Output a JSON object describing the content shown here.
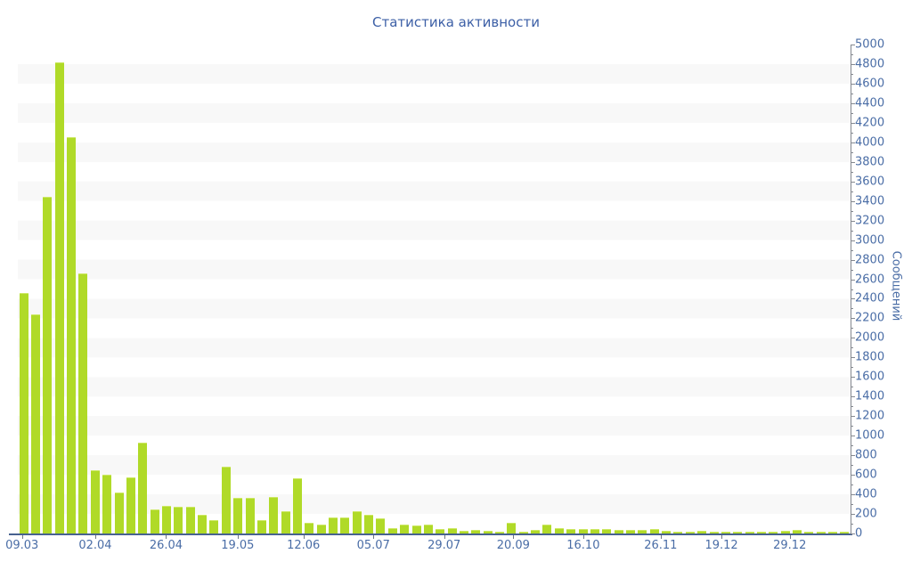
{
  "chart": {
    "title": "Статистика активности",
    "y_axis_title": "Сообщений"
  },
  "chart_data": {
    "type": "bar",
    "title": "Статистика активности",
    "xlabel": "",
    "ylabel": "Сообщений",
    "ylim": [
      0,
      5000
    ],
    "y_ticks": [
      0,
      200,
      400,
      600,
      800,
      1000,
      1200,
      1400,
      1600,
      1800,
      2000,
      2200,
      2400,
      2600,
      2800,
      3000,
      3200,
      3400,
      3600,
      3800,
      4000,
      4200,
      4400,
      4600,
      4800,
      5000
    ],
    "y_minor_tick_step": 100,
    "grid": "alternating-horizontal-stripes-every-200",
    "legend": "none",
    "bar_color": "#b0da28",
    "stripe_color": "#f8f8f8",
    "axis_line_color": "#47628f",
    "tick_label_color": "#4a6da6",
    "title_color": "#3c5fa6",
    "values": [
      2455,
      2240,
      3445,
      4820,
      4050,
      2655,
      650,
      600,
      420,
      575,
      925,
      250,
      280,
      270,
      275,
      190,
      140,
      680,
      360,
      360,
      140,
      375,
      230,
      565,
      110,
      90,
      160,
      160,
      230,
      195,
      155,
      55,
      95,
      85,
      95,
      50,
      55,
      25,
      35,
      27,
      18,
      105,
      22,
      40,
      88,
      58,
      49,
      43,
      49,
      43,
      40,
      40,
      34,
      49,
      27,
      22,
      20,
      25,
      20,
      18,
      22,
      18,
      20,
      16,
      25,
      36,
      20,
      18,
      22,
      15
    ],
    "x_ticks": [
      {
        "label": "09.03",
        "pos_pct": 0.5
      },
      {
        "label": "02.04",
        "pos_pct": 9.3
      },
      {
        "label": "26.04",
        "pos_pct": 17.8
      },
      {
        "label": "19.05",
        "pos_pct": 26.4
      },
      {
        "label": "12.06",
        "pos_pct": 34.3
      },
      {
        "label": "05.07",
        "pos_pct": 42.7
      },
      {
        "label": "29.07",
        "pos_pct": 51.2
      },
      {
        "label": "20.09",
        "pos_pct": 59.5
      },
      {
        "label": "16.10",
        "pos_pct": 67.9
      },
      {
        "label": "26.11",
        "pos_pct": 77.2
      },
      {
        "label": "19.12",
        "pos_pct": 84.5
      },
      {
        "label": "29.12",
        "pos_pct": 92.7
      }
    ]
  }
}
